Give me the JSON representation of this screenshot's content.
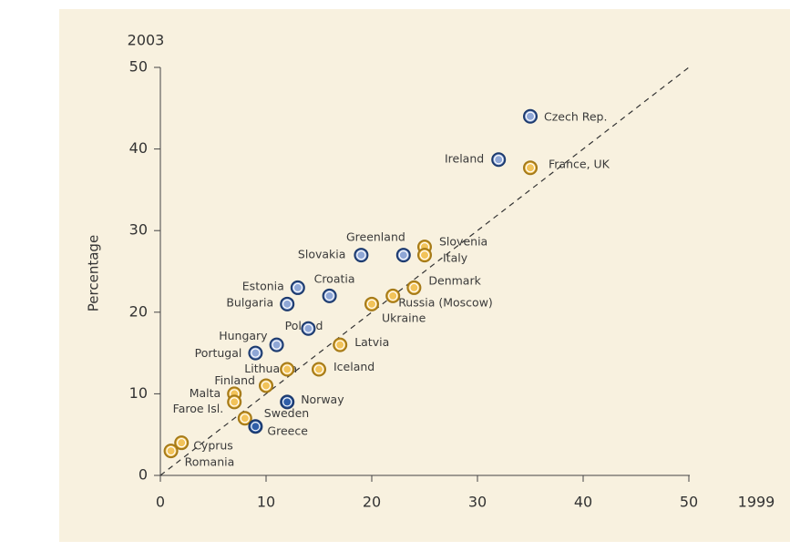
{
  "chart_data": {
    "type": "scatter",
    "ylabel": "Percentage",
    "y_axis_title": "2003",
    "x_axis_title": "1999",
    "xlim": [
      0,
      50
    ],
    "xticks": [
      0,
      10,
      20,
      30,
      40,
      50
    ],
    "ylim": [
      0,
      50
    ],
    "yticks": [
      0,
      10,
      20,
      30,
      40,
      50
    ],
    "points": [
      {
        "label": "Czech Rep.",
        "x": 35,
        "y": 44,
        "color": "#8fa7d6"
      },
      {
        "label": "Ireland",
        "x": 32,
        "y": 38.7,
        "color": "#8fa7d6"
      },
      {
        "label": "France, UK",
        "x": 35,
        "y": 37.7,
        "color": "#f2c35a"
      },
      {
        "label": "Greenland",
        "x": 23,
        "y": 27,
        "color": "#8fa7d6"
      },
      {
        "label": "Slovakia",
        "x": 19,
        "y": 27,
        "color": "#8fa7d6"
      },
      {
        "label": "Slovenia",
        "x": 25,
        "y": 28,
        "color": "#f2c35a"
      },
      {
        "label": "Italy",
        "x": 25,
        "y": 27,
        "color": "#f2c35a"
      },
      {
        "label": "Denmark",
        "x": 24,
        "y": 23,
        "color": "#f2c35a"
      },
      {
        "label": "Russia (Moscow)",
        "x": 22,
        "y": 22,
        "color": "#f2c35a"
      },
      {
        "label": "Ukraine",
        "x": 20,
        "y": 21,
        "color": "#f2c35a"
      },
      {
        "label": "Croatia",
        "x": 16,
        "y": 22,
        "color": "#8fa7d6"
      },
      {
        "label": "Estonia",
        "x": 13,
        "y": 23,
        "color": "#8fa7d6"
      },
      {
        "label": "Bulgaria",
        "x": 12,
        "y": 21,
        "color": "#8fa7d6"
      },
      {
        "label": "Poland",
        "x": 14,
        "y": 18,
        "color": "#8fa7d6"
      },
      {
        "label": "Latvia",
        "x": 17,
        "y": 16,
        "color": "#f2c35a"
      },
      {
        "label": "Hungary",
        "x": 11,
        "y": 16,
        "color": "#8fa7d6"
      },
      {
        "label": "Portugal",
        "x": 9,
        "y": 15,
        "color": "#8fa7d6"
      },
      {
        "label": "Lithuania",
        "x": 12,
        "y": 13,
        "color": "#f2c35a"
      },
      {
        "label": "Iceland",
        "x": 15,
        "y": 13,
        "color": "#f2c35a"
      },
      {
        "label": "Finland",
        "x": 10,
        "y": 11,
        "color": "#f2c35a"
      },
      {
        "label": "Malta",
        "x": 7,
        "y": 10,
        "color": "#f2c35a"
      },
      {
        "label": "Faroe Isl.",
        "x": 7,
        "y": 9,
        "color": "#f2c35a"
      },
      {
        "label": "Norway",
        "x": 12,
        "y": 9,
        "color": "#2f5ea8"
      },
      {
        "label": "Sweden",
        "x": 8,
        "y": 7,
        "color": "#f2c35a"
      },
      {
        "label": "Greece",
        "x": 9,
        "y": 6,
        "color": "#2f5ea8"
      },
      {
        "label": "Cyprus",
        "x": 2,
        "y": 4,
        "color": "#f2c35a"
      },
      {
        "label": "Romania",
        "x": 1,
        "y": 3,
        "color": "#f2c35a"
      }
    ]
  }
}
